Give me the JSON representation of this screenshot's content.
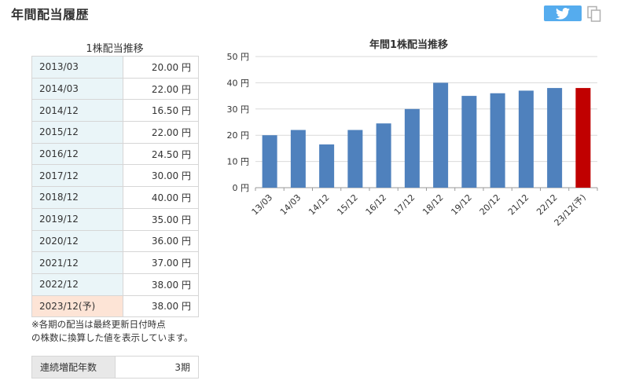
{
  "page": {
    "title": "年間配当履歴"
  },
  "share": {
    "twitter_icon": "twitter-bird-icon",
    "copy_icon": "copy-icon"
  },
  "dividend_table": {
    "caption": "1株配当推移",
    "rows": [
      {
        "period": "2013/03",
        "value": "20.00 円"
      },
      {
        "period": "2014/03",
        "value": "22.00 円"
      },
      {
        "period": "2014/12",
        "value": "16.50 円"
      },
      {
        "period": "2015/12",
        "value": "22.00 円"
      },
      {
        "period": "2016/12",
        "value": "24.50 円"
      },
      {
        "period": "2017/12",
        "value": "30.00 円"
      },
      {
        "period": "2018/12",
        "value": "40.00 円"
      },
      {
        "period": "2019/12",
        "value": "35.00 円"
      },
      {
        "period": "2020/12",
        "value": "36.00 円"
      },
      {
        "period": "2021/12",
        "value": "37.00 円"
      },
      {
        "period": "2022/12",
        "value": "38.00 円"
      },
      {
        "period": "2023/12(予)",
        "value": "38.00 円"
      }
    ],
    "note_line1": "※各期の配当は最終更新日付時点",
    "note_line2": "の株数に換算した値を表示しています。"
  },
  "streak": {
    "label": "連続増配年数",
    "value": "3期"
  },
  "colors": {
    "actual_bar": "#4f81bd",
    "forecast_bar": "#c00000",
    "period_cell": "#eaf5f8",
    "forecast_cell": "#fde4d6"
  },
  "chart_data": {
    "type": "bar",
    "title": "年間1株配当推移",
    "categories": [
      "13/03",
      "14/03",
      "14/12",
      "15/12",
      "16/12",
      "17/12",
      "18/12",
      "19/12",
      "20/12",
      "21/12",
      "22/12",
      "23/12(予)"
    ],
    "values": [
      20,
      22,
      16.5,
      22,
      24.5,
      30,
      40,
      35,
      36,
      37,
      38,
      38
    ],
    "forecast_index": 11,
    "ylim": [
      0,
      50
    ],
    "yticks": [
      0,
      10,
      20,
      30,
      40,
      50
    ],
    "ytick_labels": [
      "0 円",
      "10 円",
      "20 円",
      "30 円",
      "40 円",
      "50 円"
    ],
    "grid": true,
    "legend": "none"
  }
}
